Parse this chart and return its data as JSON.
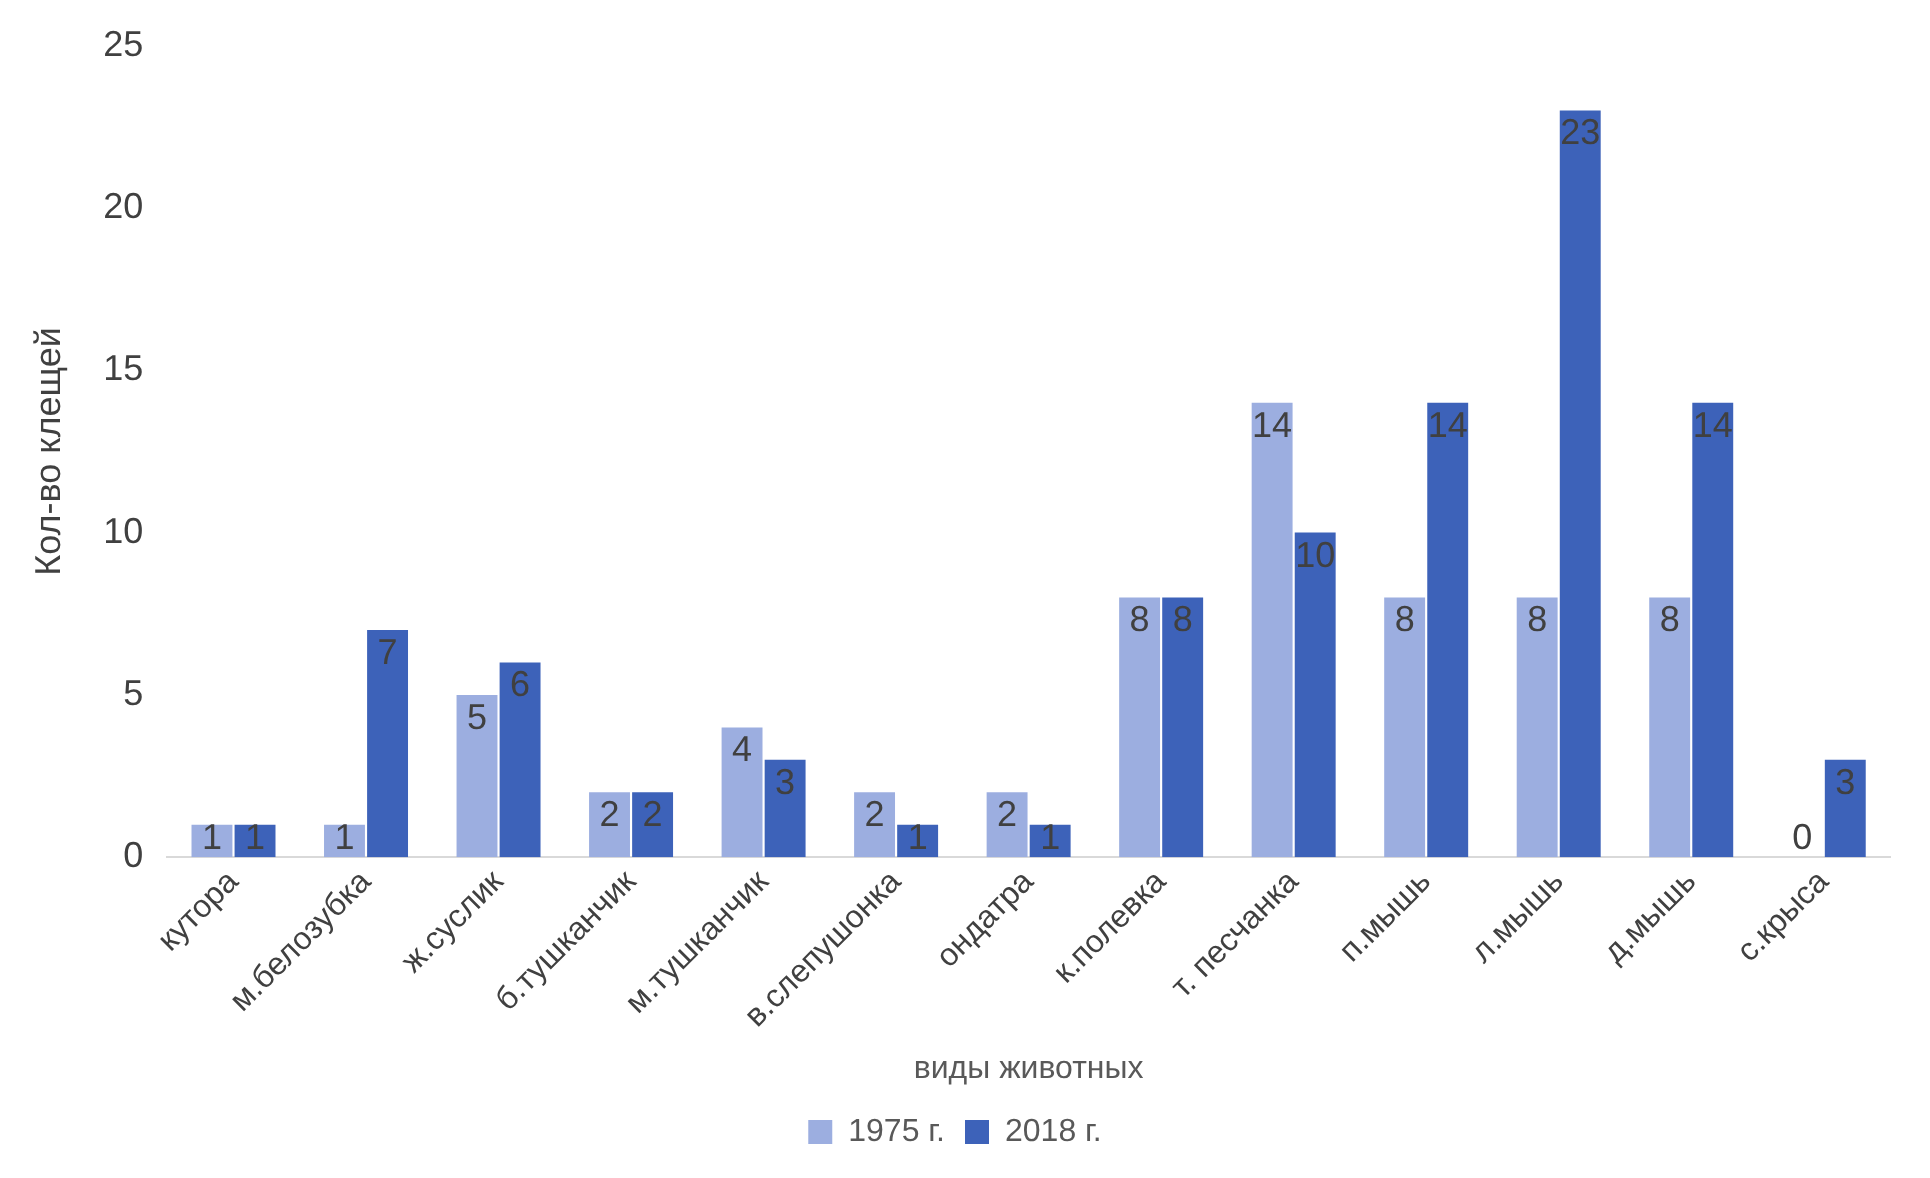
{
  "chart_data": {
    "type": "bar",
    "xlabel": "виды животных",
    "ylabel": "Кол-во клещей",
    "categories": [
      "кутора",
      "м.белозубка",
      "ж.суслик",
      "б.тушканчик",
      "м.тушканчик",
      "в.слепушонка",
      "ондатра",
      "к.полевка",
      "т. песчанка",
      "п.мышь",
      "л.мышь",
      "д.мышь",
      "с.крыса"
    ],
    "series": [
      {
        "name": "1975 г.",
        "color": "#9caee0",
        "values": [
          1,
          1,
          5,
          2,
          4,
          2,
          2,
          8,
          14,
          8,
          8,
          8,
          0
        ]
      },
      {
        "name": "2018 г.",
        "color": "#3d62b9",
        "values": [
          1,
          7,
          6,
          2,
          3,
          1,
          1,
          8,
          10,
          14,
          23,
          14,
          3
        ]
      }
    ],
    "ylim": [
      0,
      25
    ],
    "yticks": [
      0,
      5,
      10,
      15,
      20,
      25
    ],
    "grid": false,
    "legend": "bottom",
    "data_labels": true
  }
}
